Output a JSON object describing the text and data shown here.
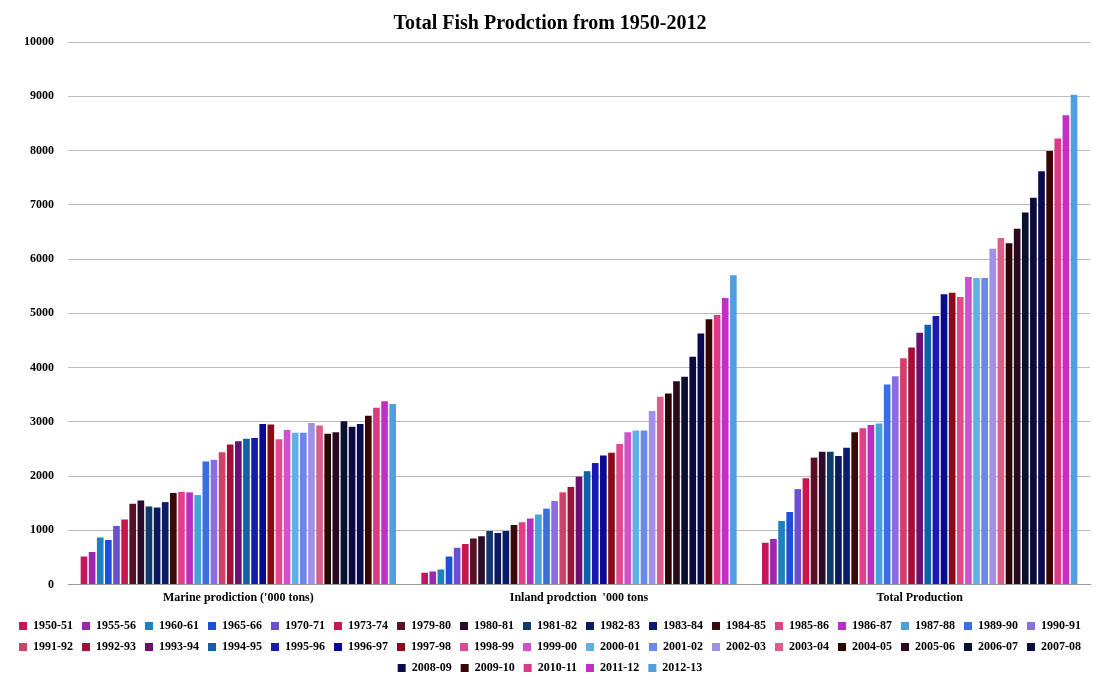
{
  "chart_data": {
    "type": "bar",
    "title": "Total Fish Prodction from 1950-2012",
    "categories": [
      "Marine prodiction ('000 tons)",
      "Inland prodction  '000 tons",
      "Total Production"
    ],
    "ylim": [
      0,
      10000
    ],
    "yticks": [
      0,
      1000,
      2000,
      3000,
      4000,
      5000,
      6000,
      7000,
      8000,
      9000,
      10000
    ],
    "grid": "y",
    "legend": "bottom",
    "series": [
      {
        "name": "1950-51",
        "color": "#c2185b",
        "values": [
          520,
          220,
          770
        ]
      },
      {
        "name": "1955-56",
        "color": "#9c27b0",
        "values": [
          600,
          240,
          840
        ]
      },
      {
        "name": "1960-61",
        "color": "#1f7fbf",
        "values": [
          870,
          280,
          1170
        ]
      },
      {
        "name": "1965-66",
        "color": "#1e4fd8",
        "values": [
          820,
          520,
          1340
        ]
      },
      {
        "name": "1970-71",
        "color": "#6a4fd0",
        "values": [
          1080,
          680,
          1760
        ]
      },
      {
        "name": "1973-74",
        "color": "#c8174f",
        "values": [
          1200,
          750,
          1960
        ]
      },
      {
        "name": "1979-80",
        "color": "#5a0f24",
        "values": [
          1490,
          850,
          2340
        ]
      },
      {
        "name": "1980-81",
        "color": "#2b0a2a",
        "values": [
          1550,
          890,
          2450
        ]
      },
      {
        "name": "1981-82",
        "color": "#0f3a6b",
        "values": [
          1440,
          990,
          2450
        ]
      },
      {
        "name": "1982-83",
        "color": "#0b1a5e",
        "values": [
          1420,
          950,
          2370
        ]
      },
      {
        "name": "1983-84",
        "color": "#0d1b6b",
        "values": [
          1520,
          990,
          2520
        ]
      },
      {
        "name": "1984-85",
        "color": "#3a0a0a",
        "values": [
          1690,
          1100,
          2810
        ]
      },
      {
        "name": "1985-86",
        "color": "#e0408a",
        "values": [
          1710,
          1150,
          2880
        ]
      },
      {
        "name": "1986-87",
        "color": "#b52fc0",
        "values": [
          1700,
          1220,
          2940
        ]
      },
      {
        "name": "1987-88",
        "color": "#4aa0d8",
        "values": [
          1650,
          1290,
          2970
        ]
      },
      {
        "name": "1989-90",
        "color": "#3a6fe0",
        "values": [
          2270,
          1400,
          3690
        ]
      },
      {
        "name": "1990-91",
        "color": "#8a6ee0",
        "values": [
          2300,
          1540,
          3840
        ]
      },
      {
        "name": "1991-92",
        "color": "#d0406a",
        "values": [
          2440,
          1700,
          4170
        ]
      },
      {
        "name": "1992-93",
        "color": "#a0103a",
        "values": [
          2580,
          1800,
          4370
        ]
      },
      {
        "name": "1993-94",
        "color": "#6a1070",
        "values": [
          2640,
          1990,
          4640
        ]
      },
      {
        "name": "1994-95",
        "color": "#1060a8",
        "values": [
          2690,
          2090,
          4790
        ]
      },
      {
        "name": "1995-96",
        "color": "#1a1ab0",
        "values": [
          2700,
          2240,
          4950
        ]
      },
      {
        "name": "1996-97",
        "color": "#0a0a90",
        "values": [
          2960,
          2380,
          5350
        ]
      },
      {
        "name": "1997-98",
        "color": "#8a0a1a",
        "values": [
          2950,
          2430,
          5380
        ]
      },
      {
        "name": "1998-99",
        "color": "#e04890",
        "values": [
          2680,
          2590,
          5300
        ]
      },
      {
        "name": "1999-00",
        "color": "#d050d0",
        "values": [
          2850,
          2810,
          5670
        ]
      },
      {
        "name": "2000-01",
        "color": "#60b0e8",
        "values": [
          2800,
          2840,
          5650
        ]
      },
      {
        "name": "2001-02",
        "color": "#6a88e8",
        "values": [
          2800,
          2840,
          5650
        ]
      },
      {
        "name": "2002-03",
        "color": "#a090e8",
        "values": [
          2980,
          3200,
          6190
        ]
      },
      {
        "name": "2003-04",
        "color": "#d86088",
        "values": [
          2930,
          3460,
          6390
        ]
      },
      {
        "name": "2004-05",
        "color": "#2a0505",
        "values": [
          2780,
          3520,
          6290
        ]
      },
      {
        "name": "2005-06",
        "color": "#2a0a20",
        "values": [
          2810,
          3750,
          6560
        ]
      },
      {
        "name": "2006-07",
        "color": "#0a1030",
        "values": [
          3010,
          3830,
          6860
        ]
      },
      {
        "name": "2007-08",
        "color": "#0a0a40",
        "values": [
          2910,
          4200,
          7130
        ]
      },
      {
        "name": "2008-09",
        "color": "#0a0a50",
        "values": [
          2960,
          4630,
          7620
        ]
      },
      {
        "name": "2009-10",
        "color": "#3a0505",
        "values": [
          3110,
          4890,
          7990
        ]
      },
      {
        "name": "2010-11",
        "color": "#e03888",
        "values": [
          3260,
          4970,
          8220
        ]
      },
      {
        "name": "2011-12",
        "color": "#c030c8",
        "values": [
          3380,
          5280,
          8650
        ]
      },
      {
        "name": "2012-13",
        "color": "#50a0e0",
        "values": [
          3330,
          5700,
          9030
        ]
      }
    ]
  }
}
